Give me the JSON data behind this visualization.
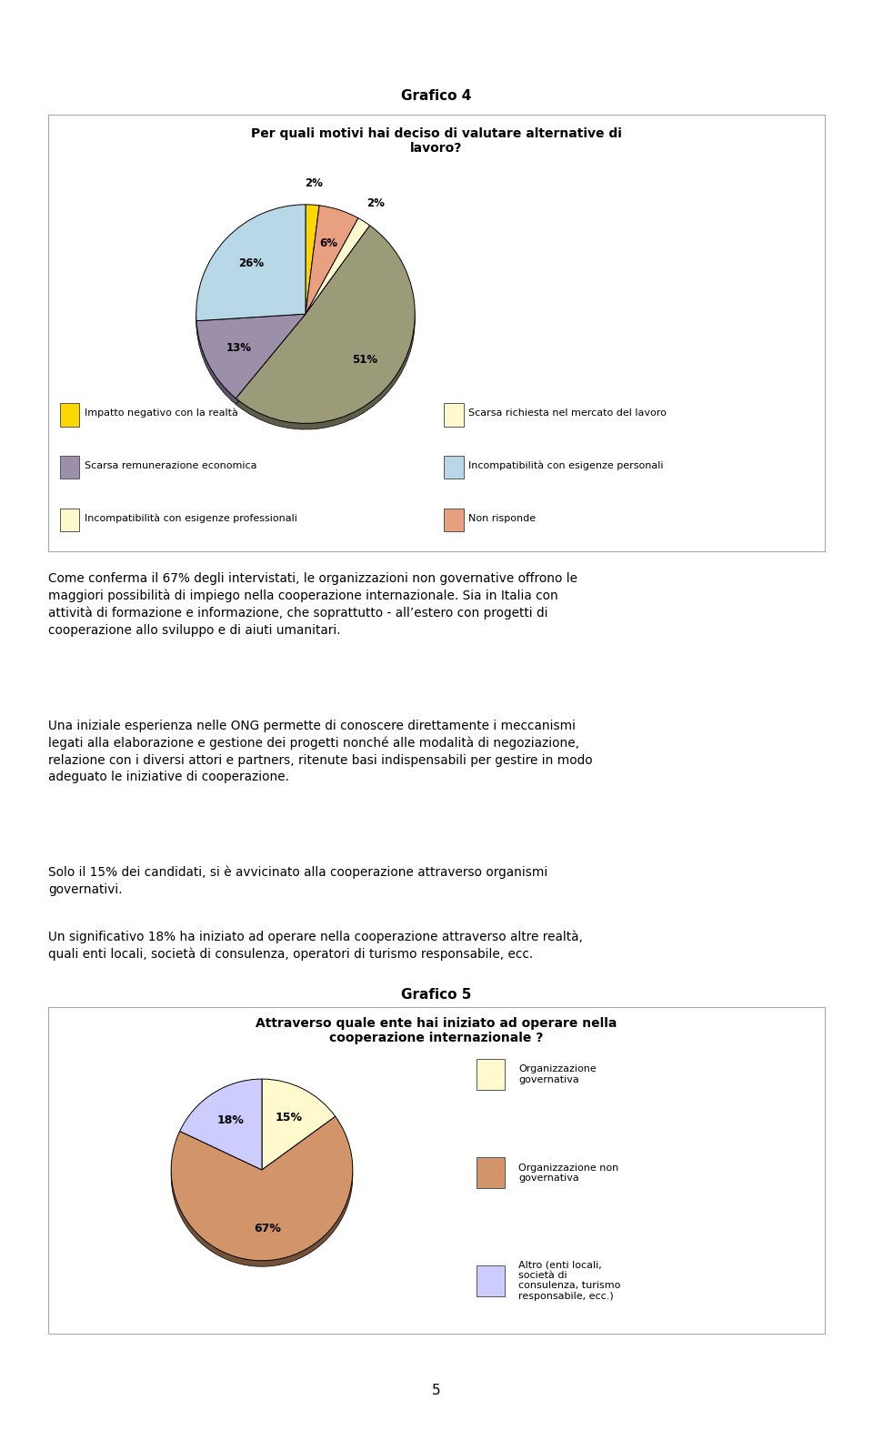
{
  "page_title": "Grafico 4",
  "chart1_title": "Per quali motivi hai deciso di valutare alternative di\nlavoro?",
  "chart1_values": [
    2,
    6,
    2,
    51,
    13,
    26
  ],
  "chart1_colors": [
    "#FFD700",
    "#E8A080",
    "#FFFACD",
    "#9B9B7A",
    "#9B8FAA",
    "#B8D8E8"
  ],
  "chart1_labels": [
    "2%",
    "6%",
    "2%",
    "51%",
    "13%",
    "26%"
  ],
  "chart1_legend": [
    "Impatto negativo con la realtà",
    "Scarsa richiesta nel mercato del lavoro",
    "Scarsa remunerazione economica",
    "Incompatibilità con esigenze personali",
    "Incompatibilità con esigenze professionali",
    "Non risponde"
  ],
  "chart1_legend_colors": [
    "#FFD700",
    "#FFFACD",
    "#9B8FAA",
    "#B8D8E8",
    "#FFFACD",
    "#E8A080"
  ],
  "paragraph1": "Come conferma il 67% degli intervistati, le organizzazioni non governative offrono le maggiori possibilità di impiego nella cooperazione internazionale. Sia in Italia con attività di formazione e informazione, che soprattutto - all’estero con progetti di cooperazione allo sviluppo e di aiuti umanitari.",
  "paragraph2": "Una iniziale esperienza nelle ONG permette di conoscere direttamente i meccanismi legati alla elaborazione e gestione dei progetti nonché alle modalità di negoziazione, relazione con i diversi attori e partners, ritenute basi indispensabili per gestire in modo adeguato le iniziative di cooperazione.",
  "paragraph3": "Solo il 15% dei candidati, si è avvicinato alla cooperazione attraverso organismi governativi.",
  "paragraph4": "Un significativo 18% ha iniziato ad operare nella cooperazione attraverso altre realtà, quali enti locali, società di consulenza, operatori di turismo responsabile, ecc.",
  "page_title2": "Grafico 5",
  "chart2_title": "Attraverso quale ente hai iniziato ad operare nella\ncooperazione internazionale ?",
  "chart2_values": [
    15,
    67,
    18
  ],
  "chart2_colors": [
    "#FFFACD",
    "#D2956A",
    "#CCCCFF"
  ],
  "chart2_labels": [
    "15%",
    "67%",
    "18%"
  ],
  "chart2_legend": [
    "Organizzazione\ngovernativa",
    "Organizzazione non\ngovernativa",
    "Altro (enti locali,\nsocietà di\nconsulenza, turismo\nresponsabile, ecc.)"
  ],
  "chart2_legend_colors": [
    "#FFFACD",
    "#D2956A",
    "#CCCCFF"
  ],
  "page_number": "5",
  "background_color": "#FFFFFF"
}
